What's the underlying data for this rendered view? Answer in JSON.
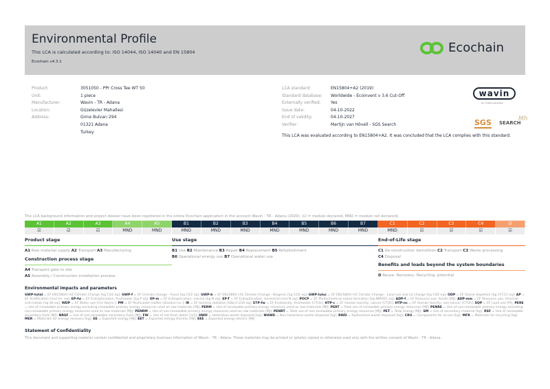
{
  "header": {
    "title": "Environmental Profile",
    "subtitle": "This LCA is calculated according to: ISO 14044, ISO 14040 and EN 15804",
    "version": "Ecochain v4.3.1",
    "logo_text": "Ecochain",
    "logo_color": "#5bc236"
  },
  "product_info": [
    {
      "label": "Product:",
      "value": "3051050 - PPr Cross Tee WT 50"
    },
    {
      "label": "Unit:",
      "value": "1 piece"
    },
    {
      "label": "Manufacturer:",
      "value": "Wavin - TR - Adana"
    },
    {
      "label": "Location:",
      "value": "Güzelevler Mahallesi"
    },
    {
      "label": "Address:",
      "value": "Girne Bulvarı 294\n01321 Adana\nTurkey"
    }
  ],
  "lca_info": [
    {
      "label": "LCA standard:",
      "value": "EN15804+A2 (2019)"
    },
    {
      "label": "Standard database:",
      "value": "Worldwide - Ecoinvent v 3.6 Cut-Off"
    },
    {
      "label": "Externally verified:",
      "value": "Yes"
    },
    {
      "label": "Issue date:",
      "value": "04-10-2022"
    },
    {
      "label": "End of validity:",
      "value": "04-10-2027"
    },
    {
      "label": "Verifier:",
      "value": "Martijn van Hövell - SGS Search"
    }
  ],
  "conclusion": "This LCA was evaluated according to EN15804+A2. It was concluded that the LCA complies with this standard.",
  "logos": {
    "wavin": "wavin",
    "wavin_sub": "An Orbia business",
    "sgs": "SGS",
    "search": "SEARCH"
  },
  "registration": "The LCA background information and project dossier have been registered in the online Ecochain application in the account Wavin - TR - Adana (2020). (☑ = module declared, MND = module not declared).",
  "modules": [
    {
      "code": "A1",
      "value": "☑",
      "color": "#5bc236"
    },
    {
      "code": "A2",
      "value": "☑",
      "color": "#5bc236"
    },
    {
      "code": "A3",
      "value": "☑",
      "color": "#5bc236"
    },
    {
      "code": "A4",
      "value": "MND",
      "color": "#8fd46b"
    },
    {
      "code": "A5",
      "value": "MND",
      "color": "#8fd46b"
    },
    {
      "code": "B1",
      "value": "MND",
      "color": "#142b44"
    },
    {
      "code": "B2",
      "value": "MND",
      "color": "#142b44"
    },
    {
      "code": "B3",
      "value": "MND",
      "color": "#142b44"
    },
    {
      "code": "B4",
      "value": "MND",
      "color": "#142b44"
    },
    {
      "code": "B5",
      "value": "MND",
      "color": "#142b44"
    },
    {
      "code": "B6",
      "value": "MND",
      "color": "#142b44"
    },
    {
      "code": "B7",
      "value": "MND",
      "color": "#142b44"
    },
    {
      "code": "C1",
      "value": "MND",
      "color": "#f26522"
    },
    {
      "code": "C2",
      "value": "☑",
      "color": "#f26522"
    },
    {
      "code": "C3",
      "value": "☑",
      "color": "#f26522"
    },
    {
      "code": "C4",
      "value": "☑",
      "color": "#f26522"
    },
    {
      "code": "D",
      "value": "☑",
      "color": "#f6a070"
    }
  ],
  "stages": {
    "product": {
      "title": "Product stage",
      "items": [
        [
          "A1",
          "Raw material supply"
        ],
        [
          "A2",
          "Transport"
        ],
        [
          "A3",
          "Manufacturing"
        ]
      ]
    },
    "construction": {
      "title": "Construction process stage",
      "items": [
        [
          "A4",
          "Transport gate to site"
        ],
        [
          "A5",
          "Assembly / Construction installation process"
        ]
      ]
    },
    "use": {
      "title": "Use stage",
      "items": [
        [
          "B1",
          "Use"
        ],
        [
          "B2",
          "Maintenance"
        ],
        [
          "B3",
          "Repair"
        ],
        [
          "B4",
          "Replacement"
        ],
        [
          "B5",
          "Refurbishment"
        ],
        [
          "B6",
          "Operational energy use"
        ],
        [
          "B7",
          "Operational water use"
        ]
      ]
    },
    "eol": {
      "title": "End-of-Life stage",
      "items": [
        [
          "C1",
          "De-construction demolition"
        ],
        [
          "C2",
          "Transport"
        ],
        [
          "C3",
          "Waste processing"
        ],
        [
          "C4",
          "Disposal"
        ]
      ]
    },
    "beyond": {
      "title": "Benefits and loads beyond the system boundaries",
      "items": [
        [
          "D",
          "Reuse- Recovery- Recycling- potential"
        ]
      ]
    }
  },
  "impacts_title": "Environmental impacts and parameters",
  "glossary": [
    [
      "GWP-total",
      "EF EN15804+A2 Climate Change [kg CO2 eq]"
    ],
    [
      "GWP-f",
      "EF Climate change - Fossil [kg CO2 eq]"
    ],
    [
      "GWP-b",
      "EF EN15804+A2 Climate Change - Biogenic [kg CO2 eq]"
    ],
    [
      "GWP-luluc",
      "EF EN15804+A2 Climate Change - Land use and LU change [kg CO2 eq]"
    ],
    [
      "ODP",
      "EF Ozone depletion [kg CFC11 eq]"
    ],
    [
      "AP",
      "EF Acidification [mol H+ eq]"
    ],
    [
      "EP-fw",
      "EF Eutrophication, freshwater [kg P eq]"
    ],
    [
      "EP-m",
      "EF Eutrophication, marine [kg N eq]"
    ],
    [
      "EP-T",
      "EF Eutrophication, terrestrial [mol N eq]"
    ],
    [
      "POCP",
      "EF Photochemical ozone formation [kg NMVOC eq]"
    ],
    [
      "ADP-f",
      "EF Resource use, fossils [MJ]"
    ],
    [
      "ADP-mm",
      "EF Resource use, minerals and metals [kg Sb eq]"
    ],
    [
      "WDP",
      "EF Water use [m3 depriv.]"
    ],
    [
      "PM",
      "EF Particulate matter [disease inc.]"
    ],
    [
      "IR",
      "EF Ionising radiation [kBq U-235 eq]"
    ],
    [
      "ETP-fw",
      "EF Ecotoxicity, freshwater [CTUe]"
    ],
    [
      "HTP-c",
      "EF Human toxicity, cancer [CTUh]"
    ],
    [
      "HTP-nc",
      "EF Human toxicity, non-cancer [CTUh]"
    ],
    [
      "SQP",
      "EF Land use [Pt]"
    ],
    [
      "PERE",
      "Use of renewable primary energy excluding renewable primary energy resources used as raw materials [MJ]"
    ],
    [
      "PERM",
      "Use of renewable primary energy resources used as raw materials [MJ]"
    ],
    [
      "PERT",
      "Total use of renewable primary energy resources [MJ]"
    ],
    [
      "PENRE",
      "Use of non-renewable primary energy excluding non-renewable primary energy resources used as raw materials [MJ]"
    ],
    [
      "PENRM",
      "Use of non-renewable primary energy resources used as raw materials [MJ]"
    ],
    [
      "PENRT",
      "Total use of non-renewable primary energy resources [MJ]"
    ],
    [
      "PET",
      "Total energy [MJ]"
    ],
    [
      "SM",
      "Use of secondary material [kg]"
    ],
    [
      "RSF",
      "Use of renewable secondary fuels [MJ]"
    ],
    [
      "NRSF",
      "Use of non-renewable secondary fuels [MJ]"
    ],
    [
      "FW",
      "Use of net fresh water [m3]"
    ],
    [
      "HWD",
      "Hazardous waste disposed [kg]"
    ],
    [
      "NHWD",
      "Non-hazardous waste disposed [kg]"
    ],
    [
      "RWD",
      "Radioactive waste disposed [kg]"
    ],
    [
      "CRU",
      "Components for re-use [kg]"
    ],
    [
      "MFR",
      "Materials for recycling [kg]"
    ],
    [
      "MER",
      "Materials for energy recovery [kg]"
    ],
    [
      "EE",
      "Exported energy [MJ]"
    ],
    [
      "EET",
      "Exported energy thermic [MJ]"
    ],
    [
      "EEE",
      "Exported energy electric [MJ]"
    ]
  ],
  "confidentiality": {
    "title": "Statement of Confidentiality",
    "text": "This document and supporting material contain confidential and proprietary business information of Wavin - TR - Adana. These materials may be printed or (photo) copied or otherwise used only with the written consent of Wavin - TR - Adana."
  }
}
